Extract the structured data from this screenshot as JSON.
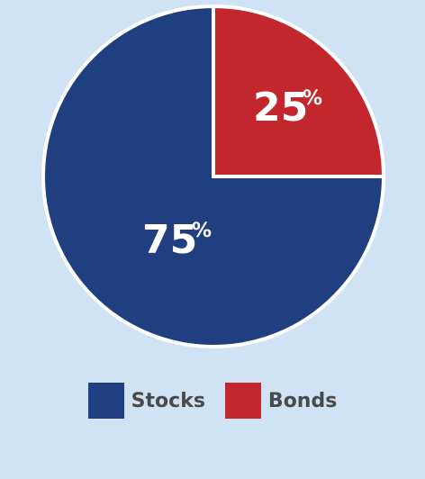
{
  "chart_data": {
    "type": "pie",
    "slices": [
      {
        "label": "Stocks",
        "value": 75,
        "value_label": "75",
        "percent_sign": "%",
        "color": "#1f3f80"
      },
      {
        "label": "Bonds",
        "value": 25,
        "value_label": "25",
        "percent_sign": "%",
        "color": "#c1272d"
      }
    ],
    "legend": {
      "position": "bottom",
      "items": [
        "Stocks",
        "Bonds"
      ]
    },
    "title": ""
  }
}
